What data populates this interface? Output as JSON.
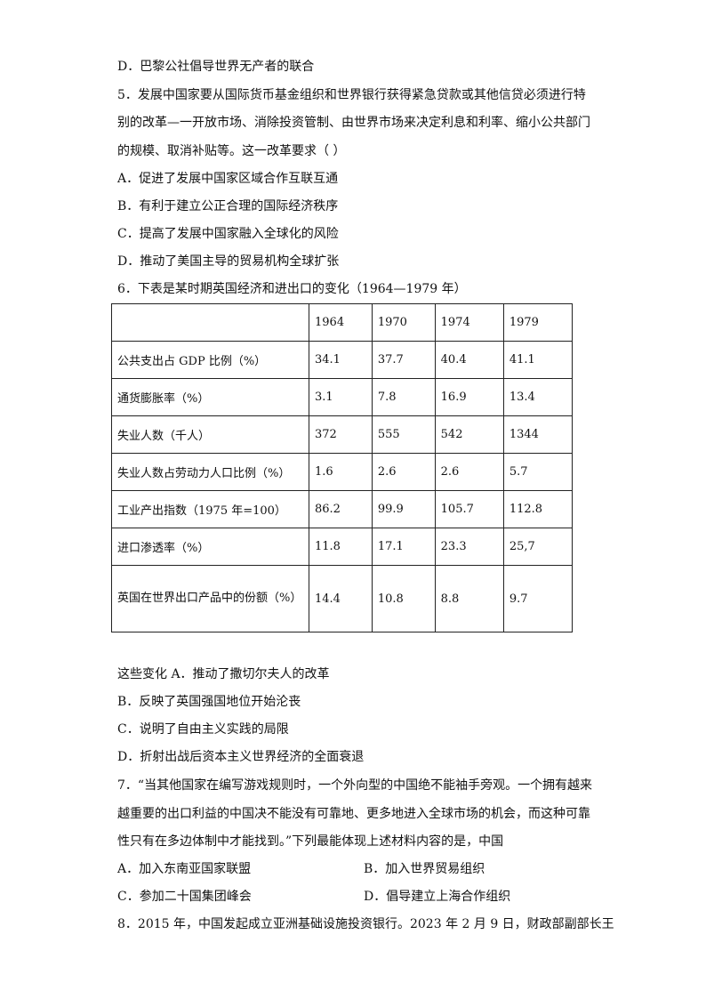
{
  "lines_before": [
    "D．巴黎公社倡导世界无产者的联合",
    "5．发展中国家要从国际货币基金组织和世界银行获得紧急贷款或其他信贷必须进行特",
    "别的改革—一开放市场、消除投资管制、由世界市场来决定利息和利率、缩小公共部门",
    "的规模、取消补贴等。这一改革要求（    ）",
    "A．促进了发展中国家区域合作互联互通",
    "B．有利于建立公正合理的国际经济秩序",
    "C．提高了发展中国家融入全球化的风险",
    "D．推动了美国主导的贸易机构全球扩张",
    "6．下表是某时期英国经济和进出口的变化（1964—1979 年）"
  ],
  "table": {
    "headers": [
      "",
      "1964",
      "1970",
      "1974",
      "1979"
    ],
    "rows": [
      [
        "公共支出占 GDP 比例（%）",
        "34.1",
        "37.7",
        "40.4",
        "41.1"
      ],
      [
        "通货膨胀率（%）",
        "3.1",
        "7.8",
        "16.9",
        "13.4"
      ],
      [
        "失业人数（千人）",
        "372",
        "555",
        "542",
        "1344"
      ],
      [
        "失业人数占劳动力人口比例（%）",
        "1.6",
        "2.6",
        "2.6",
        "5.7"
      ],
      [
        "工业产出指数（1975 年=100）",
        "86.2",
        "99.9",
        "105.7",
        "112.8"
      ],
      [
        "进口渗透率（%）",
        "11.8",
        "17.1",
        "23.3",
        "25,7"
      ],
      [
        "英国在世界出口产品中的份额（%）",
        "14.4",
        "10.8",
        "8.8",
        "9.7"
      ]
    ]
  },
  "lines_after": [
    "这些变化 A．推动了撒切尔夫人的改革",
    "B．反映了英国强国地位开始沦丧",
    "C．说明了自由主义实践的局限",
    "D．折射出战后资本主义世界经济的全面衰退",
    "7．“当其他国家在编写游戏规则时，一个外向型的中国绝不能袖手旁观。一个拥有越来",
    "越重要的出口利益的中国决不能没有可靠地、更多地进入全球市场的机会，而这种可靠",
    "性只有在多边体制中才能找到。”下列最能体现上述材料内容的是，中国"
  ],
  "q7_options": [
    "A．加入东南亚国家联盟",
    "B．加入世界贸易组织",
    "C．参加二十国集团峰会",
    "D．倡导建立上海合作组织"
  ],
  "q8_line": "8．2015 年，中国发起成立亚洲基础设施投资银行。2023 年 2 月 9 日，财政部副部长王"
}
